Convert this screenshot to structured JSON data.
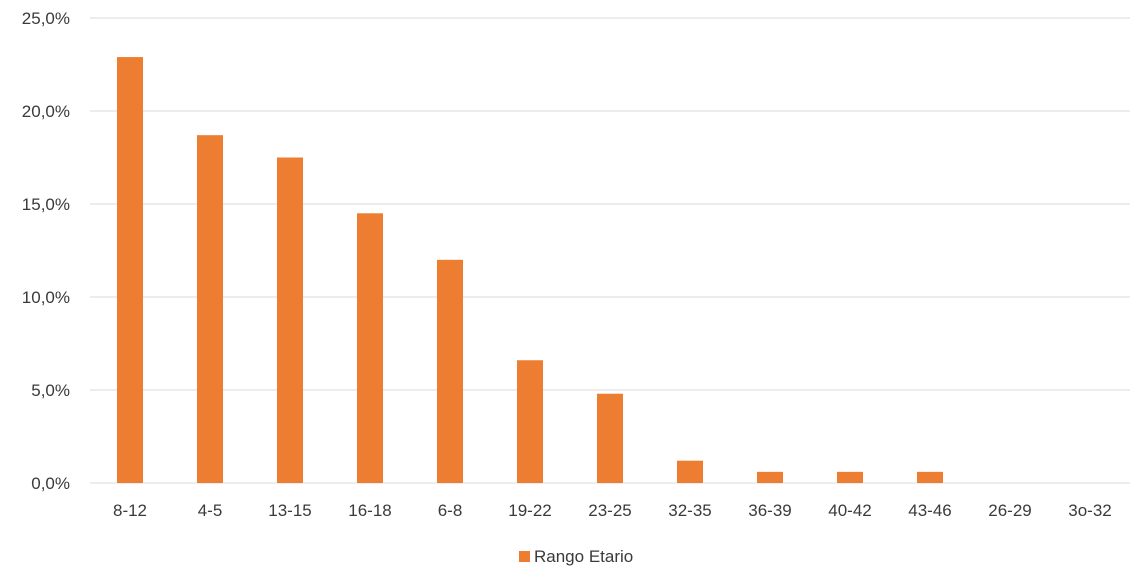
{
  "chart_data": {
    "type": "bar",
    "title": "",
    "xlabel": "",
    "ylabel": "",
    "categories": [
      "8-12",
      "4-5",
      "13-15",
      "16-18",
      "6-8",
      "19-22",
      "23-25",
      "32-35",
      "36-39",
      "40-42",
      "43-46",
      "26-29",
      "3o-32"
    ],
    "series": [
      {
        "name": "Rango Etario",
        "values": [
          22.9,
          18.7,
          17.5,
          14.5,
          12.0,
          6.6,
          4.8,
          1.2,
          0.6,
          0.6,
          0.6,
          0.0,
          0.0
        ]
      }
    ],
    "ylim": [
      0,
      25
    ],
    "yticks": [
      0,
      5,
      10,
      15,
      20,
      25
    ],
    "ytick_labels": [
      "0,0%",
      "5,0%",
      "10,0%",
      "15,0%",
      "20,0%",
      "25,0%"
    ],
    "grid": true,
    "legend_position": "bottom",
    "colors": {
      "bar": "#ED7D31",
      "grid": "#D9D9D9",
      "text": "#3A3A3A"
    }
  }
}
